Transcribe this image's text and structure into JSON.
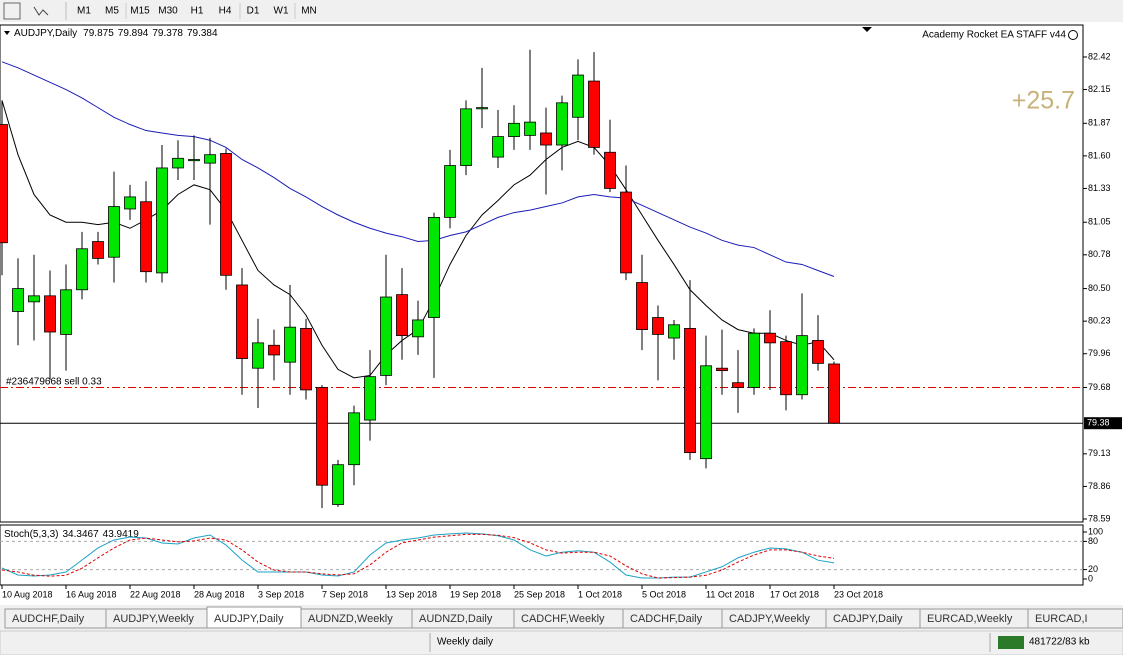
{
  "toolbar": {
    "timeframes": [
      "M1",
      "M5",
      "M15",
      "M30",
      "H1",
      "H4",
      "D1",
      "W1",
      "MN"
    ]
  },
  "chart": {
    "type": "candlestick",
    "title": "AUDJPY,Daily",
    "ea_label": "Academy Rocket EA STAFF  v44",
    "profit": "+25.7",
    "order_label": "#236479668 sell 0.33",
    "order_price": 79.68,
    "price_label": "79.38",
    "up_color": "#00e600",
    "down_color": "#ff0000",
    "ylim": [
      78.565,
      82.685
    ],
    "yticks": [
      82.42,
      82.15,
      81.87,
      {
        "value": 81.6,
        "label": "81.60"
      },
      81.33,
      81.05,
      80.78,
      {
        "value": 80.5,
        "label": "80.50"
      },
      80.23,
      79.96,
      79.68,
      79.13,
      78.86,
      78.59
    ],
    "categories": [
      "10 Aug 2018",
      null,
      null,
      null,
      "16 Aug 2018",
      null,
      null,
      null,
      "22 Aug 2018",
      null,
      null,
      null,
      "28 Aug 2018",
      null,
      null,
      null,
      "3 Sep 2018",
      null,
      null,
      null,
      "7 Sep 2018",
      null,
      null,
      null,
      "13 Sep 2018",
      null,
      null,
      null,
      "19 Sep 2018",
      null,
      null,
      null,
      "25 Sep 2018",
      null,
      null,
      null,
      "1 Oct 2018",
      null,
      null,
      null,
      "5 Oct 2018",
      null,
      null,
      null,
      "11 Oct 2018",
      null,
      null,
      null,
      "17 Oct 2018",
      null,
      null,
      null,
      "23 Oct 2018"
    ],
    "candles": [
      {
        "open": 81.86,
        "high": 82.06,
        "low": 80.61,
        "close": 80.88
      },
      {
        "open": 80.31,
        "high": 80.75,
        "low": 80.03,
        "close": 80.5
      },
      {
        "open": 80.39,
        "high": 80.78,
        "low": 80.07,
        "close": 80.44
      },
      {
        "open": 80.44,
        "high": 80.65,
        "low": 79.74,
        "close": 80.14
      },
      {
        "open": 80.12,
        "high": 80.7,
        "low": 79.82,
        "close": 80.49
      },
      {
        "open": 80.49,
        "high": 80.97,
        "low": 80.41,
        "close": 80.83
      },
      {
        "open": 80.89,
        "high": 80.97,
        "low": 80.7,
        "close": 80.75
      },
      {
        "open": 80.76,
        "high": 81.47,
        "low": 80.55,
        "close": 81.18
      },
      {
        "open": 81.16,
        "high": 81.36,
        "low": 81.07,
        "close": 81.26
      },
      {
        "open": 81.22,
        "high": 81.39,
        "low": 80.55,
        "close": 80.64
      },
      {
        "open": 80.63,
        "high": 81.69,
        "low": 80.55,
        "close": 81.5
      },
      {
        "open": 81.5,
        "high": 81.73,
        "low": 81.4,
        "close": 81.58
      },
      {
        "open": 81.56,
        "high": 81.77,
        "low": 81.4,
        "close": 81.57
      },
      {
        "open": 81.54,
        "high": 81.75,
        "low": 81.03,
        "close": 81.61
      },
      {
        "open": 81.62,
        "high": 81.66,
        "low": 80.49,
        "close": 80.61
      },
      {
        "open": 80.53,
        "high": 80.67,
        "low": 79.62,
        "close": 79.92
      },
      {
        "open": 79.84,
        "high": 80.25,
        "low": 79.51,
        "close": 80.05
      },
      {
        "open": 80.03,
        "high": 80.16,
        "low": 79.74,
        "close": 79.95
      },
      {
        "open": 79.89,
        "high": 80.53,
        "low": 79.62,
        "close": 80.18
      },
      {
        "open": 80.17,
        "high": 80.25,
        "low": 79.58,
        "close": 79.66
      },
      {
        "open": 79.68,
        "high": 79.7,
        "low": 78.68,
        "close": 78.87
      },
      {
        "open": 78.71,
        "high": 79.08,
        "low": 78.69,
        "close": 79.04
      },
      {
        "open": 79.04,
        "high": 79.53,
        "low": 78.87,
        "close": 79.47
      },
      {
        "open": 79.41,
        "high": 79.99,
        "low": 79.24,
        "close": 79.77
      },
      {
        "open": 79.78,
        "high": 80.78,
        "low": 79.7,
        "close": 80.43
      },
      {
        "open": 80.45,
        "high": 80.67,
        "low": 79.91,
        "close": 80.11
      },
      {
        "open": 80.1,
        "high": 80.4,
        "low": 79.95,
        "close": 80.24
      },
      {
        "open": 80.26,
        "high": 81.13,
        "low": 79.76,
        "close": 81.09
      },
      {
        "open": 81.09,
        "high": 81.65,
        "low": 81.0,
        "close": 81.52
      },
      {
        "open": 81.52,
        "high": 82.06,
        "low": 81.44,
        "close": 81.99
      },
      {
        "open": 81.99,
        "high": 82.33,
        "low": 81.83,
        "close": 82.0
      },
      {
        "open": 81.59,
        "high": 81.98,
        "low": 81.5,
        "close": 81.76
      },
      {
        "open": 81.76,
        "high": 82.02,
        "low": 81.65,
        "close": 81.87
      },
      {
        "open": 81.77,
        "high": 82.48,
        "low": 81.65,
        "close": 81.88
      },
      {
        "open": 81.79,
        "high": 82.0,
        "low": 81.28,
        "close": 81.69
      },
      {
        "open": 81.69,
        "high": 82.1,
        "low": 81.48,
        "close": 82.04
      },
      {
        "open": 81.92,
        "high": 82.4,
        "low": 81.73,
        "close": 82.27
      },
      {
        "open": 82.22,
        "high": 82.46,
        "low": 81.61,
        "close": 81.67
      },
      {
        "open": 81.63,
        "high": 81.9,
        "low": 81.3,
        "close": 81.33
      },
      {
        "open": 81.3,
        "high": 81.52,
        "low": 80.57,
        "close": 80.63
      },
      {
        "open": 80.55,
        "high": 80.78,
        "low": 79.99,
        "close": 80.16
      },
      {
        "open": 80.26,
        "high": 80.36,
        "low": 79.74,
        "close": 80.12
      },
      {
        "open": 80.09,
        "high": 80.24,
        "low": 79.91,
        "close": 80.2
      },
      {
        "open": 80.17,
        "high": 80.57,
        "low": 79.08,
        "close": 79.14
      },
      {
        "open": 79.09,
        "high": 80.11,
        "low": 79.01,
        "close": 79.86
      },
      {
        "open": 79.84,
        "high": 80.16,
        "low": 79.62,
        "close": 79.82
      },
      {
        "open": 79.72,
        "high": 79.99,
        "low": 79.47,
        "close": 79.68
      },
      {
        "open": 79.68,
        "high": 80.17,
        "low": 79.62,
        "close": 80.13
      },
      {
        "open": 80.13,
        "high": 80.32,
        "low": 79.66,
        "close": 80.05
      },
      {
        "open": 80.06,
        "high": 80.11,
        "low": 79.49,
        "close": 79.62
      },
      {
        "open": 79.62,
        "high": 80.46,
        "low": 79.58,
        "close": 80.11
      },
      {
        "open": 80.07,
        "high": 80.28,
        "low": 79.82,
        "close": 79.88
      },
      {
        "open": 79.875,
        "high": 79.894,
        "low": 79.378,
        "close": 79.384
      }
    ],
    "ma": [
      {
        "color": "#000000",
        "values": [
          82.06,
          81.61,
          81.28,
          81.11,
          81.05,
          81.05,
          81.03,
          81.05,
          81.0,
          81.07,
          81.15,
          81.28,
          81.36,
          81.32,
          81.15,
          80.9,
          80.65,
          80.53,
          80.45,
          80.28,
          80.03,
          79.83,
          79.76,
          79.78,
          79.95,
          80.07,
          80.16,
          80.41,
          80.7,
          80.94,
          81.11,
          81.23,
          81.36,
          81.44,
          81.57,
          81.67,
          81.72,
          81.67,
          81.52,
          81.32,
          81.11,
          80.9,
          80.7,
          80.49,
          80.36,
          80.24,
          80.16,
          80.13,
          80.13,
          80.07,
          80.03,
          80.06,
          79.91
        ]
      },
      {
        "color": "#1c1cb8",
        "values": [
          82.38,
          82.33,
          82.27,
          82.21,
          82.15,
          82.08,
          82.0,
          81.92,
          81.86,
          81.81,
          81.79,
          81.77,
          81.76,
          81.73,
          81.67,
          81.57,
          81.5,
          81.42,
          81.33,
          81.26,
          81.18,
          81.11,
          81.05,
          81.0,
          80.96,
          80.93,
          80.89,
          80.9,
          80.94,
          80.97,
          81.03,
          81.09,
          81.13,
          81.15,
          81.18,
          81.21,
          81.26,
          81.28,
          81.26,
          81.25,
          81.19,
          81.13,
          81.07,
          81.01,
          80.96,
          80.9,
          80.86,
          80.84,
          80.78,
          80.72,
          80.7,
          80.65,
          80.6
        ]
      }
    ]
  },
  "stoch": {
    "title": "Stoch(5,3,3)",
    "ylim": [
      -12.8,
      114.9
    ],
    "yticks": [
      100,
      80,
      20,
      0
    ],
    "levels": [
      80,
      20
    ],
    "series": [
      {
        "color": "#1aa3c4",
        "values": [
          23.4,
          8.5,
          6.4,
          8.5,
          14.9,
          40.4,
          66.0,
          83.0,
          89.4,
          87.2,
          76.6,
          74.5,
          87.2,
          93.6,
          72.3,
          40.4,
          14.9,
          14.9,
          14.9,
          14.9,
          8.5,
          6.4,
          14.9,
          51.1,
          76.6,
          83.0,
          87.2,
          93.6,
          96,
          98,
          96,
          92,
          83,
          62,
          49,
          57,
          60,
          57,
          36,
          8.5,
          2,
          2,
          4,
          4,
          15,
          26,
          45,
          57,
          66,
          64,
          57,
          40,
          34.3467
        ]
      },
      {
        "color": "#e00000",
        "dash": true,
        "values": [
          19,
          15,
          8,
          6,
          8,
          23,
          45,
          66,
          83,
          87,
          83,
          79,
          81,
          87,
          83,
          62,
          36,
          19,
          15,
          15,
          11,
          8.5,
          11,
          30,
          57,
          77,
          83,
          89,
          92,
          95,
          95,
          93,
          88,
          77,
          62,
          55,
          57,
          57,
          49,
          28,
          11,
          2,
          3,
          4,
          8,
          19,
          36,
          51,
          62,
          62,
          57,
          49,
          43.9419
        ]
      }
    ]
  },
  "tabs": {
    "items": [
      "AUDCHF,Daily",
      "AUDJPY,Weekly",
      "AUDJPY,Daily",
      "AUDNZD,Weekly",
      "AUDNZD,Daily",
      "CADCHF,Weekly",
      "CADCHF,Daily",
      "CADJPY,Weekly",
      "CADJPY,Daily",
      "EURCAD,Weekly",
      "EURCAD,I"
    ],
    "active": 2
  },
  "status": {
    "profile": "Weekly daily",
    "traffic": "481722/83 kb"
  }
}
